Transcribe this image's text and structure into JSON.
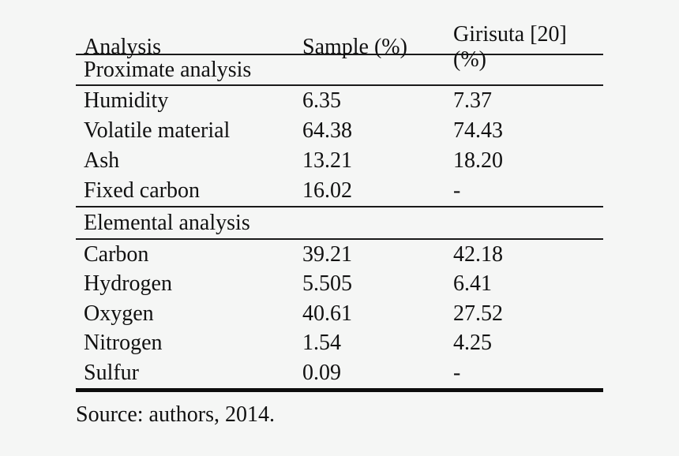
{
  "page": {
    "background_color": "#f5f6f5",
    "text_color": "#111111",
    "rule_color": "#1a1a1a"
  },
  "table": {
    "columns": [
      "Analysis",
      "Sample (%)",
      "Girisuta [20] (%)"
    ],
    "sections": [
      {
        "title": "Proximate analysis",
        "rows": [
          [
            "Humidity",
            "6.35",
            "7.37"
          ],
          [
            "Volatile material",
            "64.38",
            "74.43"
          ],
          [
            "Ash",
            "13.21",
            "18.20"
          ],
          [
            "Fixed carbon",
            "16.02",
            "-"
          ]
        ]
      },
      {
        "title": "Elemental analysis",
        "rows": [
          [
            "Carbon",
            "39.21",
            "42.18"
          ],
          [
            "Hydrogen",
            "5.505",
            "6.41"
          ],
          [
            "Oxygen",
            "40.61",
            "27.52"
          ],
          [
            "Nitrogen",
            "1.54",
            "4.25"
          ],
          [
            "Sulfur",
            "0.09",
            "-"
          ]
        ]
      }
    ],
    "source_note": "Source: authors, 2014."
  }
}
